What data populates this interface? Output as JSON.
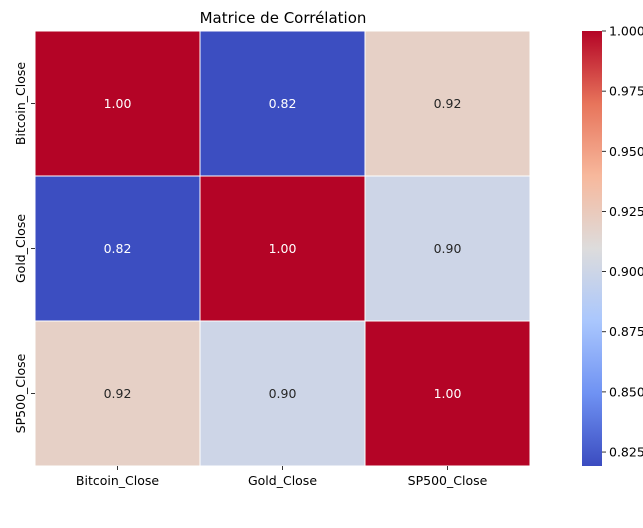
{
  "chart_data": {
    "type": "heatmap",
    "title": "Matrice de Corrélation",
    "xlabel": "",
    "ylabel": "",
    "x_categories": [
      "Bitcoin_Close",
      "Gold_Close",
      "SP500_Close"
    ],
    "y_categories": [
      "Bitcoin_Close",
      "Gold_Close",
      "SP500_Close"
    ],
    "values": [
      [
        1.0,
        0.82,
        0.92
      ],
      [
        0.82,
        1.0,
        0.9
      ],
      [
        0.92,
        0.9,
        1.0
      ]
    ],
    "value_labels": [
      [
        "1.00",
        "0.82",
        "0.92"
      ],
      [
        "0.82",
        "1.00",
        "0.90"
      ],
      [
        "0.92",
        "0.90",
        "1.00"
      ]
    ],
    "colormap": "coolwarm",
    "colorbar": {
      "range": [
        0.8192,
        1.0
      ],
      "ticks": [
        0.825,
        0.85,
        0.875,
        0.9,
        0.925,
        0.95,
        0.975,
        1.0
      ],
      "tick_labels": [
        "0.825",
        "0.850",
        "0.875",
        "0.900",
        "0.925",
        "0.950",
        "0.975",
        "1.000"
      ]
    },
    "cell_border_color": "#ffffff",
    "colormap_stops": [
      "#3b4cc0",
      "#6f92f3",
      "#aac7fd",
      "#dddcdc",
      "#f7b89c",
      "#e7745b",
      "#b40426"
    ]
  }
}
